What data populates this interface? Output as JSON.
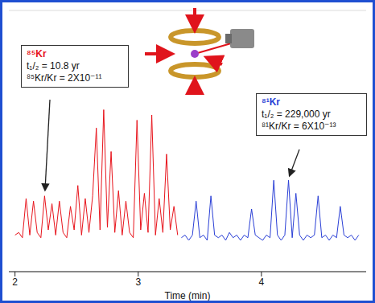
{
  "chart_data": {
    "type": "line",
    "x_label": "Time (min)",
    "x": [
      2,
      2.03,
      2.06,
      2.09,
      2.12,
      2.15,
      2.18,
      2.21,
      2.24,
      2.27,
      2.3,
      2.33,
      2.36,
      2.39,
      2.42,
      2.45,
      2.48,
      2.51,
      2.54,
      2.57,
      2.6,
      2.63,
      2.66,
      2.69,
      2.72,
      2.75,
      2.78,
      2.81,
      2.84,
      2.87,
      2.9,
      2.93,
      2.96,
      2.99,
      3.02,
      3.05,
      3.08,
      3.11,
      3.14,
      3.17,
      3.2,
      3.23,
      3.26,
      3.29,
      3.32,
      3.35,
      3.38,
      3.41,
      3.44,
      3.47,
      3.5,
      3.53,
      3.56,
      3.59,
      3.62,
      3.65,
      3.68,
      3.71,
      3.74,
      3.77,
      3.8,
      3.83,
      3.86,
      3.89,
      3.92,
      3.95,
      3.98,
      4.01,
      4.04,
      4.07,
      4.1,
      4.13,
      4.16,
      4.19,
      4.22,
      4.25,
      4.28,
      4.31,
      4.34,
      4.37,
      4.4,
      4.43,
      4.46,
      4.49,
      4.52,
      4.55,
      4.58,
      4.61,
      4.64,
      4.67,
      4.7,
      4.73,
      4.76,
      4.79
    ],
    "series": [
      {
        "name": "⁸⁵Kr",
        "color": "#e8141c",
        "values": [
          1.4,
          1.5,
          1.3,
          2.8,
          1.4,
          2.7,
          1.5,
          1.3,
          2.9,
          1.6,
          2.6,
          1.4,
          2.7,
          1.5,
          1.3,
          2.5,
          1.6,
          3.3,
          1.4,
          2.8,
          1.5,
          2.9,
          5.5,
          1.6,
          6.2,
          1.7,
          4.6,
          1.5,
          3.1,
          1.4,
          2.7,
          1.5,
          1.3,
          5.8,
          1.6,
          3.0,
          1.5,
          6.0,
          1.4,
          2.8,
          1.5,
          4.5,
          1.6,
          2.5,
          1.4,
          null,
          null,
          null,
          null,
          null,
          null,
          null,
          null,
          null,
          null,
          null,
          null,
          null,
          null,
          null,
          null,
          null,
          null,
          null,
          null,
          null,
          null,
          null,
          null,
          null,
          null,
          null,
          null,
          null,
          null,
          null,
          null,
          null,
          null,
          null,
          null,
          null,
          null,
          null,
          null,
          null,
          null,
          null,
          null,
          null,
          null,
          null,
          null,
          null
        ]
      },
      {
        "name": "⁸¹Kr",
        "color": "#2a3fd6",
        "values": [
          null,
          null,
          null,
          null,
          null,
          null,
          null,
          null,
          null,
          null,
          null,
          null,
          null,
          null,
          null,
          null,
          null,
          null,
          null,
          null,
          null,
          null,
          null,
          null,
          null,
          null,
          null,
          null,
          null,
          null,
          null,
          null,
          null,
          null,
          null,
          null,
          null,
          null,
          null,
          null,
          null,
          null,
          null,
          null,
          null,
          1.3,
          1.4,
          1.2,
          1.4,
          2.7,
          1.3,
          1.4,
          1.2,
          2.9,
          1.4,
          1.3,
          1.4,
          1.2,
          1.5,
          1.3,
          1.4,
          1.2,
          1.4,
          1.3,
          2.4,
          1.4,
          1.3,
          1.2,
          1.4,
          1.3,
          3.5,
          1.4,
          1.2,
          1.4,
          3.5,
          1.3,
          3.0,
          1.4,
          1.2,
          1.4,
          1.3,
          1.4,
          2.9,
          1.3,
          1.4,
          1.2,
          1.4,
          1.3,
          2.5,
          1.4,
          1.3,
          1.4,
          1.2,
          1.4
        ]
      }
    ],
    "annotations": [
      [
        "t₁/₂ = 10.8 yr",
        "⁸⁵Kr/Kr = 2X10⁻¹¹"
      ],
      [
        "t₁/₂ = 229,000 yr",
        "⁸¹Kr/Kr = 6X10⁻¹³"
      ]
    ],
    "xlim": [
      1.95,
      4.85
    ],
    "xticks": [
      2,
      3,
      4
    ],
    "ylim": [
      0,
      10
    ],
    "yticks": [
      0,
      2.5,
      5,
      7.5,
      10
    ],
    "grid": true,
    "tick_labels": "x"
  }
}
